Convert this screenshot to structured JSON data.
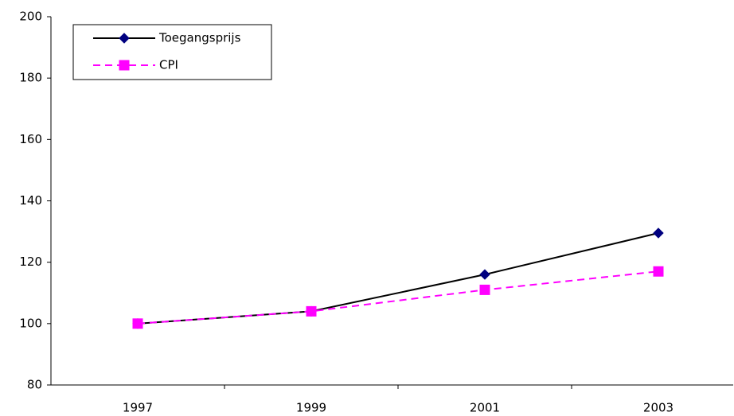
{
  "chart_data": {
    "type": "line",
    "categories": [
      "1997",
      "1999",
      "2001",
      "2003"
    ],
    "series": [
      {
        "name": "Toegangsprijs",
        "color": "#000000",
        "marker_color": "#000080",
        "marker": "diamond",
        "dashed": false,
        "values": [
          100,
          104,
          116,
          129.5
        ]
      },
      {
        "name": "CPI",
        "color": "#ff00ff",
        "marker_color": "#ff00ff",
        "marker": "square",
        "dashed": true,
        "values": [
          100,
          104,
          111,
          117
        ]
      }
    ],
    "ylim": [
      80,
      200
    ],
    "yticks": [
      80,
      100,
      120,
      140,
      160,
      180,
      200
    ],
    "legend": "top-left"
  }
}
